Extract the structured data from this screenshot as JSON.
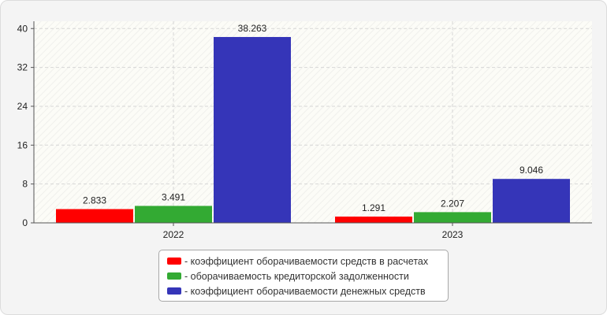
{
  "chart_data": {
    "type": "bar",
    "categories": [
      "2022",
      "2023"
    ],
    "series": [
      {
        "name": "- коэффициент оборачиваемости средств в расчетах",
        "color": "#ff0000",
        "values": [
          2.833,
          1.291
        ]
      },
      {
        "name": "- оборачиваемость кредиторской задолженности",
        "color": "#33aa33",
        "values": [
          3.491,
          2.207
        ]
      },
      {
        "name": "- коэффициент оборачиваемости денежных средств",
        "color": "#3535b8",
        "values": [
          38.263,
          9.046
        ]
      }
    ],
    "value_labels": [
      [
        "2.833",
        "1.291"
      ],
      [
        "3.491",
        "2.207"
      ],
      [
        "38.263",
        "9.046"
      ]
    ],
    "yticks": [
      0,
      8,
      16,
      24,
      32,
      40
    ],
    "ylim": [
      0,
      41.5
    ],
    "grid": true,
    "legend_position": "bottom"
  }
}
